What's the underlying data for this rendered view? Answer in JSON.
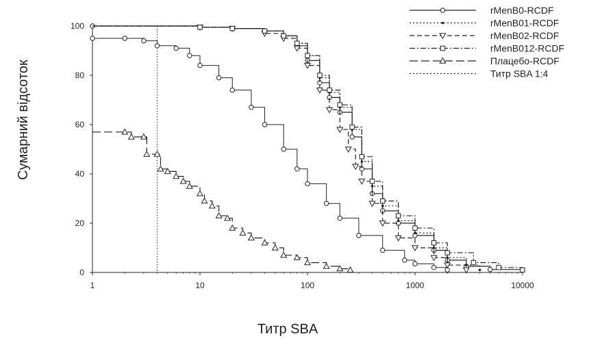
{
  "chart_data": {
    "type": "line",
    "subtype": "reverse-cumulative-distribution",
    "xlabel": "Титр SBA",
    "ylabel": "Сумарний відсоток",
    "xscale": "log",
    "xlim": [
      1,
      10000
    ],
    "ylim": [
      0,
      100
    ],
    "xticks": [
      1,
      10,
      100,
      1000,
      10000
    ],
    "xtick_labels": [
      "1",
      "10",
      "100",
      "1000",
      "10000"
    ],
    "yticks": [
      0,
      20,
      40,
      60,
      80,
      100
    ],
    "ytick_labels": [
      "0",
      "20",
      "40",
      "60",
      "80",
      "100"
    ],
    "grid": false,
    "legend_position": "top-right",
    "reference_line": {
      "name": "Титр SBA 1:4",
      "x": 4,
      "style": "dotted"
    },
    "series": [
      {
        "name": "rMenB0-RCDF",
        "style": "solid",
        "marker": "circle",
        "x": [
          1,
          10,
          20,
          40,
          60,
          80,
          100,
          130,
          160,
          200,
          260,
          320,
          400,
          500,
          700,
          1000,
          1500,
          2000,
          3000,
          5000,
          10000
        ],
        "y": [
          100,
          99.5,
          99,
          98,
          96,
          92,
          86,
          77,
          71,
          65,
          55,
          42,
          32,
          25,
          20,
          15,
          9,
          5,
          2.5,
          1.2,
          1
        ]
      },
      {
        "name": "rMenB01-RCDF",
        "style": "dotted",
        "marker": "dot",
        "x": [
          1,
          10,
          20,
          40,
          60,
          80,
          100,
          130,
          160,
          200,
          260,
          320,
          400,
          500,
          700,
          1000,
          1500,
          2000,
          3000,
          4000
        ],
        "y": [
          100,
          99.5,
          99,
          98,
          96,
          93,
          88,
          79,
          73,
          67,
          58,
          45,
          35,
          27,
          21,
          16,
          10,
          6,
          3,
          1
        ]
      },
      {
        "name": "rMenB02-RCDF",
        "style": "dashed",
        "marker": "triangle-down",
        "x": [
          1,
          10,
          20,
          40,
          60,
          80,
          100,
          130,
          160,
          200,
          240,
          280,
          320,
          400,
          500,
          700,
          1000,
          1500,
          2000,
          3000
        ],
        "y": [
          100,
          99.5,
          99,
          97,
          95,
          91,
          84,
          74,
          66,
          58,
          50,
          43,
          37,
          28,
          20,
          14,
          10,
          6,
          3,
          1
        ]
      },
      {
        "name": "rMenB012-RCDF",
        "style": "dash-dot",
        "marker": "square",
        "x": [
          1,
          10,
          20,
          40,
          60,
          80,
          100,
          130,
          160,
          200,
          260,
          320,
          400,
          500,
          700,
          1000,
          1500,
          2000,
          3500,
          6000,
          10000
        ],
        "y": [
          100,
          99.5,
          99,
          98,
          96,
          93,
          88,
          80,
          74,
          68,
          59,
          47,
          37,
          29,
          23,
          18,
          12,
          8,
          4,
          2,
          1
        ]
      },
      {
        "name": "rMenB0-RCDF (circle)",
        "style": "solid-thin",
        "marker": "circle",
        "x": [
          1,
          2,
          3,
          4,
          6,
          8,
          10,
          15,
          20,
          30,
          40,
          60,
          80,
          100,
          150,
          200,
          300,
          500,
          800,
          1000,
          1500,
          2000
        ],
        "y": [
          95,
          95,
          94,
          92,
          91,
          88,
          84,
          79,
          74,
          67,
          60,
          50,
          42,
          36,
          28,
          22,
          15,
          9,
          5,
          3.5,
          2,
          1
        ]
      },
      {
        "name": "Плацебо-RCDF",
        "style": "long-dash",
        "marker": "triangle-up",
        "x": [
          1,
          2,
          2.3,
          3,
          3.2,
          4,
          4.3,
          5,
          6,
          7,
          8,
          10,
          11,
          13,
          15,
          18,
          20,
          25,
          30,
          40,
          50,
          60,
          80,
          100,
          150,
          200,
          250
        ],
        "y": [
          57,
          57,
          55,
          55,
          48,
          48,
          42,
          41,
          39,
          37,
          35,
          32,
          29,
          27,
          23,
          22,
          18,
          16,
          14,
          12,
          10,
          7,
          6,
          4,
          2.5,
          1.5,
          1
        ]
      }
    ]
  },
  "legend": {
    "items": [
      {
        "label": "rMenB0-RCDF",
        "style": "solid",
        "marker": "circle"
      },
      {
        "label": "rMenB01-RCDF",
        "style": "dotted",
        "marker": "dot"
      },
      {
        "label": "rMenB02-RCDF",
        "style": "dashed",
        "marker": "triangle-down"
      },
      {
        "label": "rMenB012-RCDF",
        "style": "dash-dot",
        "marker": "square"
      },
      {
        "label": "Плацебо-RCDF",
        "style": "long-dash",
        "marker": "triangle-up"
      },
      {
        "label": "Титр SBA 1:4",
        "style": "dotted",
        "marker": "none"
      }
    ]
  },
  "colors": {
    "line": "#222222",
    "background": "#ffffff"
  }
}
